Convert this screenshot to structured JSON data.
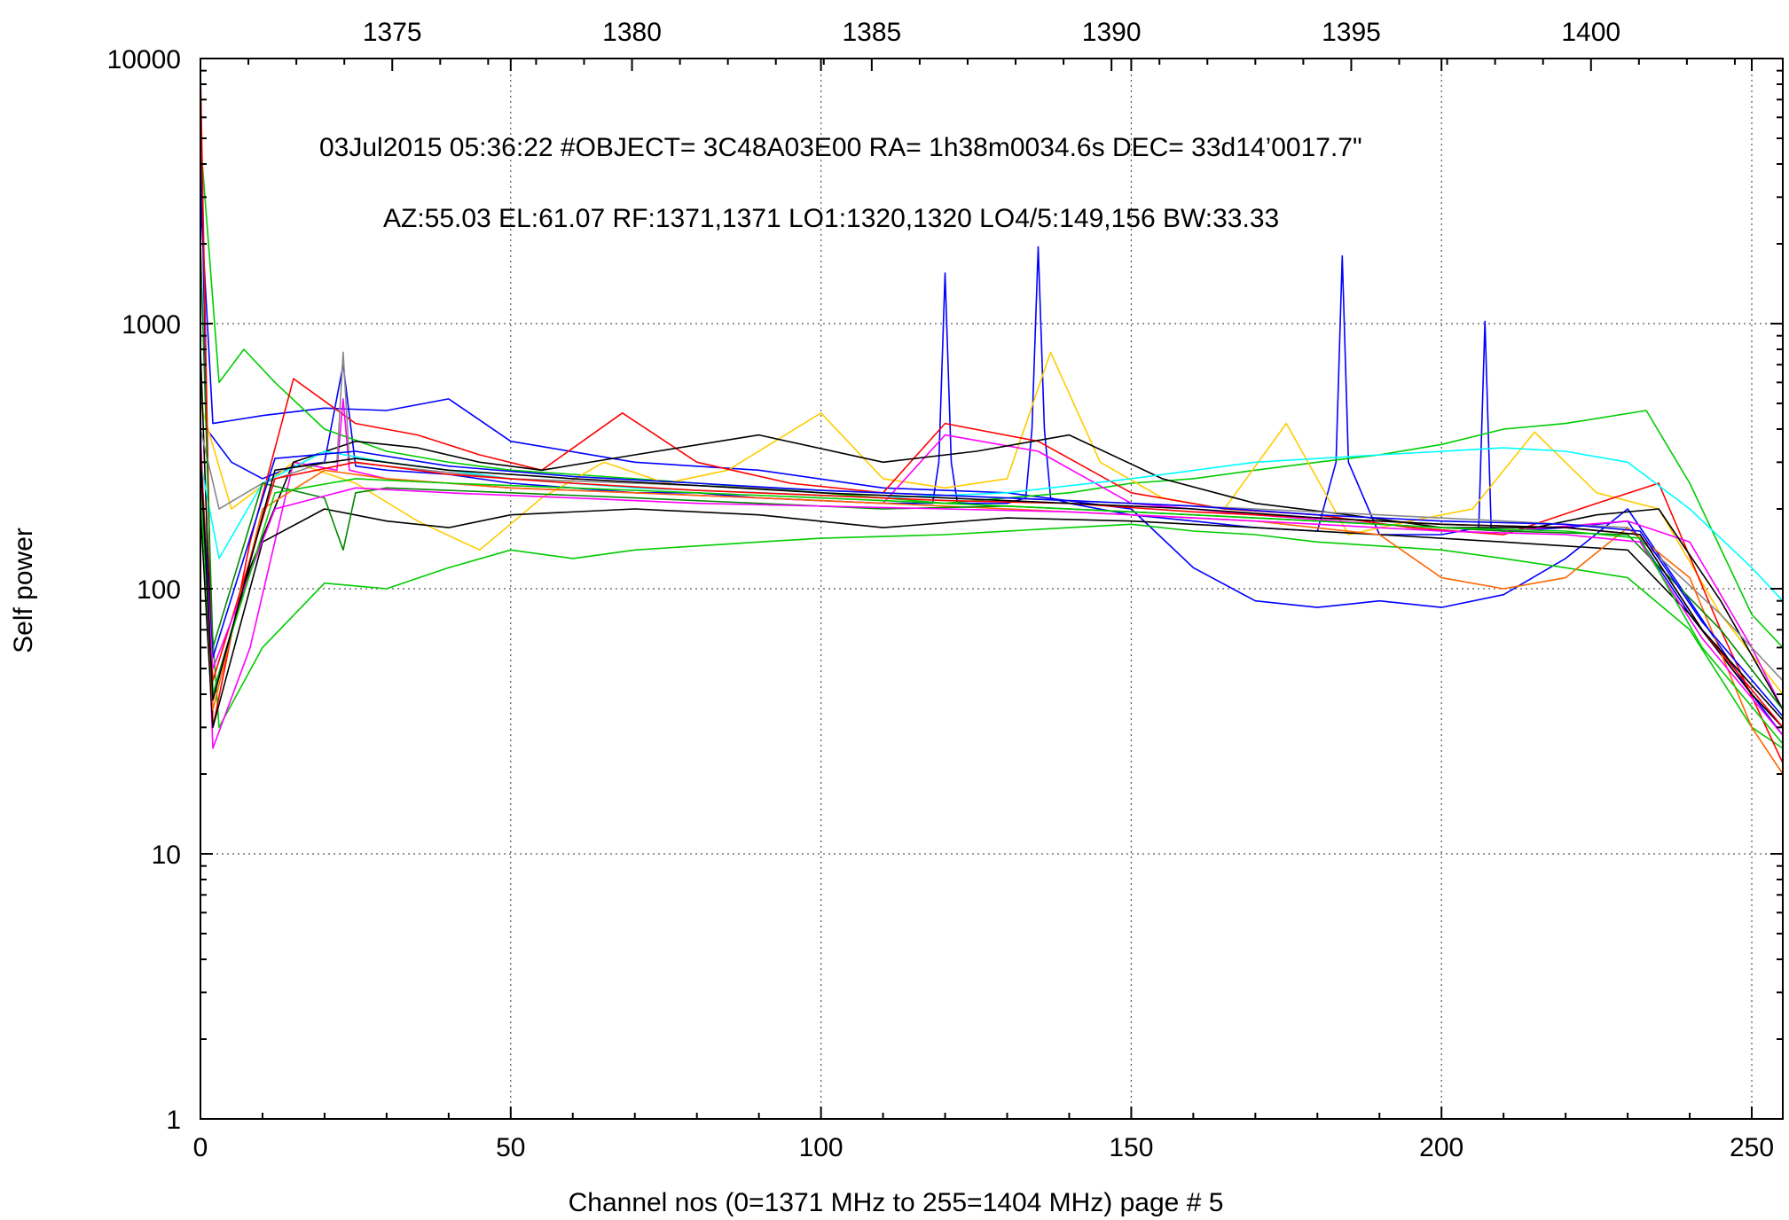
{
  "chart_data": {
    "type": "line",
    "title": "",
    "xlabel": "Channel nos (0=1371 MHz to 255=1404 MHz) page # 5",
    "ylabel": "Self power",
    "xlim": [
      0,
      255
    ],
    "ylim": [
      1,
      10000
    ],
    "y_scale": "log",
    "grid": true,
    "x_ticks": [
      0,
      50,
      100,
      150,
      200,
      250
    ],
    "x_tick_labels": [
      "0",
      "50",
      "100",
      "150",
      "200",
      "250"
    ],
    "y_ticks": [
      1,
      10,
      100,
      1000,
      10000
    ],
    "y_tick_labels": [
      "1",
      "10",
      "100",
      "1000",
      "10000"
    ],
    "x2_label": "",
    "x2_lim": [
      1371,
      1404
    ],
    "x2_ticks": [
      1375,
      1380,
      1385,
      1390,
      1395,
      1400
    ],
    "x2_tick_labels": [
      "1375",
      "1380",
      "1385",
      "1390",
      "1395",
      "1400"
    ],
    "annotations": [
      "03Jul2015 05:36:22  #OBJECT= 3C48A03E00 RA=   1h38m0034.6s DEC=  33d14’0017.7\"",
      "AZ:55.03  EL:61.07  RF:1371,1371     LO1:1320,1320     LO4/5:149,156     BW:33.33"
    ],
    "series_colors": [
      "#ff0000",
      "#00cc00",
      "#0000ff",
      "#ff00ff",
      "#00ffff",
      "#ffcc00",
      "#000000",
      "#ff6600",
      "#888888",
      "#008800"
    ],
    "series": [
      {
        "color": "#0000ff",
        "x": [
          0,
          1,
          5,
          10,
          15,
          20,
          23,
          25,
          30,
          40,
          50,
          60,
          70,
          80,
          90,
          100,
          110,
          118,
          119,
          120,
          121,
          122,
          130,
          133,
          134,
          135,
          136,
          137,
          140,
          150,
          160,
          170,
          180,
          183,
          184,
          185,
          190,
          200,
          206,
          207,
          208,
          210,
          220,
          230,
          240,
          250,
          255
        ],
        "y": [
          6000,
          400,
          300,
          260,
          290,
          300,
          700,
          290,
          280,
          270,
          250,
          240,
          230,
          230,
          220,
          215,
          210,
          210,
          300,
          1550,
          300,
          210,
          210,
          220,
          400,
          1950,
          400,
          220,
          210,
          190,
          180,
          170,
          165,
          300,
          1800,
          300,
          160,
          160,
          170,
          1020,
          170,
          165,
          170,
          180,
          80,
          40,
          28
        ]
      },
      {
        "color": "#0000ff",
        "x": [
          0,
          2,
          10,
          20,
          30,
          40,
          50,
          70,
          90,
          110,
          130,
          150,
          160,
          170,
          180,
          190,
          200,
          210,
          220,
          230,
          240,
          250,
          255
        ],
        "y": [
          3000,
          420,
          450,
          480,
          470,
          520,
          360,
          300,
          280,
          240,
          230,
          200,
          120,
          90,
          85,
          90,
          85,
          95,
          130,
          200,
          90,
          40,
          30
        ]
      },
      {
        "color": "#00cc00",
        "x": [
          0,
          3,
          7,
          12,
          20,
          30,
          40,
          50,
          60,
          70,
          80,
          90,
          100,
          110,
          120,
          130,
          140,
          150,
          160,
          170,
          180,
          190,
          200,
          210,
          220,
          233,
          240,
          250,
          255
        ],
        "y": [
          5000,
          600,
          800,
          600,
          400,
          330,
          300,
          280,
          270,
          260,
          250,
          240,
          230,
          220,
          210,
          220,
          230,
          250,
          260,
          280,
          300,
          320,
          350,
          400,
          420,
          470,
          250,
          80,
          60
        ]
      },
      {
        "color": "#00cc00",
        "x": [
          0,
          3,
          10,
          20,
          30,
          40,
          50,
          60,
          70,
          80,
          90,
          100,
          120,
          140,
          150,
          160,
          170,
          180,
          190,
          200,
          210,
          220,
          230,
          240,
          250,
          255
        ],
        "y": [
          300,
          30,
          60,
          105,
          100,
          120,
          140,
          130,
          140,
          145,
          150,
          155,
          160,
          170,
          175,
          165,
          160,
          150,
          145,
          140,
          130,
          120,
          110,
          70,
          30,
          25
        ]
      },
      {
        "color": "#ffcc00",
        "x": [
          0,
          5,
          15,
          25,
          35,
          45,
          55,
          65,
          75,
          85,
          100,
          110,
          120,
          130,
          137,
          145,
          155,
          165,
          175,
          185,
          195,
          205,
          215,
          225,
          235,
          245,
          255
        ],
        "y": [
          500,
          200,
          300,
          250,
          180,
          140,
          220,
          300,
          250,
          280,
          460,
          260,
          240,
          260,
          780,
          300,
          220,
          200,
          420,
          160,
          180,
          200,
          390,
          230,
          200,
          80,
          40
        ]
      },
      {
        "color": "#ff0000",
        "x": [
          0,
          2,
          8,
          15,
          25,
          35,
          45,
          55,
          68,
          80,
          95,
          110,
          120,
          135,
          150,
          165,
          180,
          195,
          210,
          225,
          235,
          245,
          255
        ],
        "y": [
          9000,
          30,
          150,
          620,
          420,
          380,
          320,
          280,
          460,
          300,
          250,
          230,
          420,
          360,
          230,
          200,
          190,
          170,
          160,
          210,
          250,
          70,
          22
        ]
      },
      {
        "color": "#ff00ff",
        "x": [
          0,
          2,
          8,
          15,
          22,
          23,
          24,
          30,
          40,
          50,
          70,
          90,
          110,
          120,
          135,
          150,
          170,
          190,
          210,
          230,
          240,
          250,
          255
        ],
        "y": [
          400,
          25,
          60,
          300,
          280,
          520,
          280,
          260,
          250,
          240,
          230,
          220,
          210,
          380,
          330,
          210,
          190,
          175,
          165,
          180,
          150,
          60,
          35
        ]
      },
      {
        "color": "#000000",
        "x": [
          0,
          2,
          8,
          15,
          25,
          35,
          45,
          55,
          70,
          90,
          110,
          125,
          140,
          155,
          170,
          185,
          200,
          215,
          225,
          235,
          245,
          255
        ],
        "y": [
          800,
          40,
          120,
          300,
          360,
          340,
          300,
          280,
          320,
          380,
          300,
          330,
          380,
          260,
          210,
          190,
          170,
          170,
          190,
          200,
          90,
          35
        ]
      },
      {
        "color": "#000000",
        "x": [
          0,
          2,
          10,
          20,
          30,
          40,
          50,
          70,
          90,
          110,
          130,
          150,
          170,
          190,
          210,
          230,
          240,
          250,
          255
        ],
        "y": [
          200,
          30,
          150,
          200,
          180,
          170,
          190,
          200,
          190,
          170,
          185,
          180,
          170,
          160,
          150,
          140,
          80,
          40,
          30
        ]
      },
      {
        "color": "#00ffff",
        "x": [
          0,
          3,
          10,
          20,
          30,
          40,
          50,
          70,
          90,
          110,
          130,
          150,
          170,
          190,
          210,
          220,
          230,
          240,
          250,
          255
        ],
        "y": [
          300,
          130,
          250,
          330,
          300,
          280,
          260,
          240,
          230,
          220,
          230,
          260,
          300,
          320,
          340,
          330,
          300,
          200,
          120,
          90
        ]
      },
      {
        "color": "#888888",
        "x": [
          0,
          3,
          10,
          20,
          22,
          23,
          24,
          30,
          50,
          70,
          90,
          110,
          130,
          150,
          170,
          190,
          210,
          230,
          245,
          255
        ],
        "y": [
          400,
          200,
          250,
          300,
          300,
          780,
          300,
          290,
          260,
          250,
          240,
          230,
          220,
          210,
          200,
          190,
          180,
          170,
          80,
          45
        ]
      },
      {
        "color": "#ff6600",
        "x": [
          0,
          2,
          10,
          20,
          30,
          40,
          50,
          70,
          90,
          110,
          130,
          150,
          170,
          190,
          200,
          210,
          220,
          230,
          240,
          250,
          255
        ],
        "y": [
          300,
          35,
          200,
          280,
          260,
          250,
          240,
          230,
          220,
          210,
          200,
          190,
          180,
          160,
          110,
          100,
          110,
          170,
          110,
          30,
          20
        ]
      },
      {
        "color": "#008800",
        "x": [
          0,
          2,
          10,
          20,
          23,
          25,
          30,
          50,
          70,
          90,
          110,
          130,
          150,
          170,
          190,
          210,
          230,
          245,
          255
        ],
        "y": [
          2000,
          60,
          250,
          220,
          140,
          230,
          240,
          230,
          220,
          210,
          200,
          205,
          195,
          185,
          175,
          165,
          160,
          70,
          35
        ]
      },
      {
        "color": "#ff0000",
        "x": [
          0,
          2,
          12,
          25,
          40,
          60,
          80,
          100,
          120,
          140,
          160,
          180,
          200,
          220,
          232,
          242,
          255
        ],
        "y": [
          350,
          45,
          260,
          300,
          270,
          250,
          235,
          225,
          215,
          210,
          195,
          185,
          175,
          170,
          160,
          70,
          30
        ]
      },
      {
        "color": "#0000ff",
        "x": [
          0,
          2,
          12,
          25,
          40,
          60,
          80,
          100,
          120,
          140,
          160,
          180,
          200,
          220,
          232,
          242,
          255
        ],
        "y": [
          280,
          55,
          310,
          330,
          290,
          265,
          250,
          235,
          225,
          215,
          205,
          190,
          180,
          175,
          165,
          75,
          33
        ]
      },
      {
        "color": "#ff00ff",
        "x": [
          0,
          2,
          12,
          25,
          40,
          60,
          80,
          100,
          120,
          140,
          160,
          180,
          200,
          220,
          232,
          242,
          255
        ],
        "y": [
          260,
          50,
          200,
          240,
          230,
          220,
          210,
          205,
          200,
          195,
          185,
          175,
          165,
          160,
          150,
          65,
          28
        ]
      },
      {
        "color": "#00cc00",
        "x": [
          0,
          2,
          12,
          25,
          40,
          60,
          80,
          100,
          120,
          140,
          160,
          180,
          200,
          220,
          232,
          242,
          255
        ],
        "y": [
          240,
          40,
          230,
          260,
          250,
          240,
          230,
          220,
          210,
          200,
          190,
          180,
          170,
          165,
          155,
          60,
          26
        ]
      },
      {
        "color": "#000000",
        "x": [
          0,
          2,
          12,
          25,
          40,
          60,
          80,
          100,
          120,
          140,
          160,
          180,
          200,
          220,
          232,
          242,
          255
        ],
        "y": [
          320,
          38,
          280,
          310,
          280,
          260,
          245,
          230,
          220,
          210,
          200,
          185,
          175,
          170,
          160,
          70,
          32
        ]
      }
    ]
  }
}
